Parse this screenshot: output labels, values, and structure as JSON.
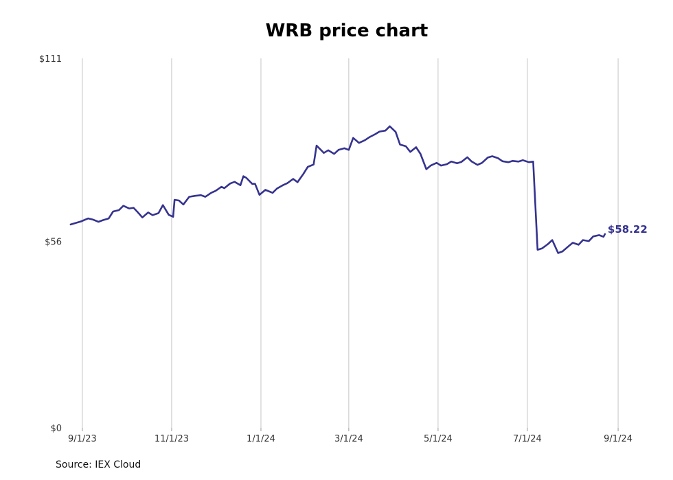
{
  "chart_data": {
    "type": "line",
    "title": "WRB price chart",
    "source": "Source: IEX Cloud",
    "xlabel": "",
    "ylabel": "",
    "ylim": [
      0,
      111
    ],
    "yticks": [
      {
        "value": 0,
        "label": "$0"
      },
      {
        "value": 56,
        "label": "$56"
      },
      {
        "value": 111,
        "label": "$111"
      }
    ],
    "xlim": [
      "2023-08-25",
      "2024-09-08"
    ],
    "xticks": [
      {
        "date": "2023-09-01",
        "label": "9/1/23"
      },
      {
        "date": "2023-11-01",
        "label": "11/1/23"
      },
      {
        "date": "2024-01-01",
        "label": "1/1/24"
      },
      {
        "date": "2024-03-01",
        "label": "3/1/24"
      },
      {
        "date": "2024-05-01",
        "label": "5/1/24"
      },
      {
        "date": "2024-07-01",
        "label": "7/1/24"
      },
      {
        "date": "2024-09-01",
        "label": "9/1/24"
      }
    ],
    "grid": "vertical",
    "line_color": "#35338f",
    "end_label": "$58.22",
    "series": [
      {
        "points": [
          [
            "2023-08-24",
            61.1
          ],
          [
            "2023-08-28",
            61.6
          ],
          [
            "2023-08-31",
            62.0
          ],
          [
            "2023-09-05",
            62.9
          ],
          [
            "2023-09-08",
            62.6
          ],
          [
            "2023-09-12",
            61.9
          ],
          [
            "2023-09-15",
            62.4
          ],
          [
            "2023-09-19",
            62.9
          ],
          [
            "2023-09-22",
            65.0
          ],
          [
            "2023-09-26",
            65.4
          ],
          [
            "2023-09-29",
            66.7
          ],
          [
            "2023-10-03",
            65.9
          ],
          [
            "2023-10-06",
            66.1
          ],
          [
            "2023-10-09",
            64.7
          ],
          [
            "2023-10-12",
            63.2
          ],
          [
            "2023-10-16",
            64.7
          ],
          [
            "2023-10-19",
            63.9
          ],
          [
            "2023-10-23",
            64.5
          ],
          [
            "2023-10-26",
            66.9
          ],
          [
            "2023-10-30",
            64.0
          ],
          [
            "2023-11-02",
            63.4
          ],
          [
            "2023-11-03",
            68.5
          ],
          [
            "2023-11-06",
            68.3
          ],
          [
            "2023-11-09",
            67.1
          ],
          [
            "2023-11-13",
            69.4
          ],
          [
            "2023-11-17",
            69.7
          ],
          [
            "2023-11-21",
            69.9
          ],
          [
            "2023-11-24",
            69.4
          ],
          [
            "2023-11-28",
            70.6
          ],
          [
            "2023-12-01",
            71.2
          ],
          [
            "2023-12-05",
            72.4
          ],
          [
            "2023-12-07",
            72.0
          ],
          [
            "2023-12-11",
            73.4
          ],
          [
            "2023-12-14",
            73.9
          ],
          [
            "2023-12-18",
            72.9
          ],
          [
            "2023-12-20",
            75.6
          ],
          [
            "2023-12-22",
            75.1
          ],
          [
            "2023-12-26",
            73.3
          ],
          [
            "2023-12-28",
            73.3
          ],
          [
            "2023-12-31",
            70.0
          ],
          [
            "2024-01-04",
            71.5
          ],
          [
            "2024-01-09",
            70.6
          ],
          [
            "2024-01-12",
            71.9
          ],
          [
            "2024-01-16",
            72.9
          ],
          [
            "2024-01-19",
            73.5
          ],
          [
            "2024-01-23",
            74.8
          ],
          [
            "2024-01-26",
            73.8
          ],
          [
            "2024-01-30",
            76.3
          ],
          [
            "2024-02-02",
            78.4
          ],
          [
            "2024-02-06",
            79.1
          ],
          [
            "2024-02-08",
            84.8
          ],
          [
            "2024-02-13",
            82.6
          ],
          [
            "2024-02-16",
            83.4
          ],
          [
            "2024-02-20",
            82.3
          ],
          [
            "2024-02-23",
            83.5
          ],
          [
            "2024-02-27",
            84.0
          ],
          [
            "2024-03-01",
            83.5
          ],
          [
            "2024-03-04",
            87.1
          ],
          [
            "2024-03-08",
            85.6
          ],
          [
            "2024-03-12",
            86.4
          ],
          [
            "2024-03-15",
            87.3
          ],
          [
            "2024-03-19",
            88.2
          ],
          [
            "2024-03-22",
            89.0
          ],
          [
            "2024-03-26",
            89.3
          ],
          [
            "2024-03-29",
            90.6
          ],
          [
            "2024-04-02",
            88.9
          ],
          [
            "2024-04-05",
            85.1
          ],
          [
            "2024-04-09",
            84.6
          ],
          [
            "2024-04-12",
            82.9
          ],
          [
            "2024-04-16",
            84.3
          ],
          [
            "2024-04-19",
            82.3
          ],
          [
            "2024-04-23",
            77.7
          ],
          [
            "2024-04-26",
            78.8
          ],
          [
            "2024-04-30",
            79.6
          ],
          [
            "2024-05-03",
            78.8
          ],
          [
            "2024-05-07",
            79.2
          ],
          [
            "2024-05-10",
            80.0
          ],
          [
            "2024-05-14",
            79.5
          ],
          [
            "2024-05-17",
            79.9
          ],
          [
            "2024-05-21",
            81.3
          ],
          [
            "2024-05-24",
            80.0
          ],
          [
            "2024-05-28",
            79.0
          ],
          [
            "2024-05-31",
            79.6
          ],
          [
            "2024-06-04",
            81.2
          ],
          [
            "2024-06-07",
            81.6
          ],
          [
            "2024-06-11",
            81.0
          ],
          [
            "2024-06-14",
            80.1
          ],
          [
            "2024-06-18",
            79.8
          ],
          [
            "2024-06-21",
            80.2
          ],
          [
            "2024-06-25",
            80.0
          ],
          [
            "2024-06-28",
            80.4
          ],
          [
            "2024-07-02",
            79.8
          ],
          [
            "2024-07-05",
            80.0
          ],
          [
            "2024-07-08",
            53.5
          ],
          [
            "2024-07-11",
            53.9
          ],
          [
            "2024-07-15",
            55.2
          ],
          [
            "2024-07-18",
            56.4
          ],
          [
            "2024-07-22",
            52.5
          ],
          [
            "2024-07-25",
            53.0
          ],
          [
            "2024-07-29",
            54.5
          ],
          [
            "2024-08-01",
            55.6
          ],
          [
            "2024-08-05",
            55.0
          ],
          [
            "2024-08-08",
            56.4
          ],
          [
            "2024-08-12",
            56.1
          ],
          [
            "2024-08-15",
            57.5
          ],
          [
            "2024-08-19",
            57.9
          ],
          [
            "2024-08-22",
            57.4
          ],
          [
            "2024-08-23",
            58.22
          ]
        ]
      }
    ]
  }
}
